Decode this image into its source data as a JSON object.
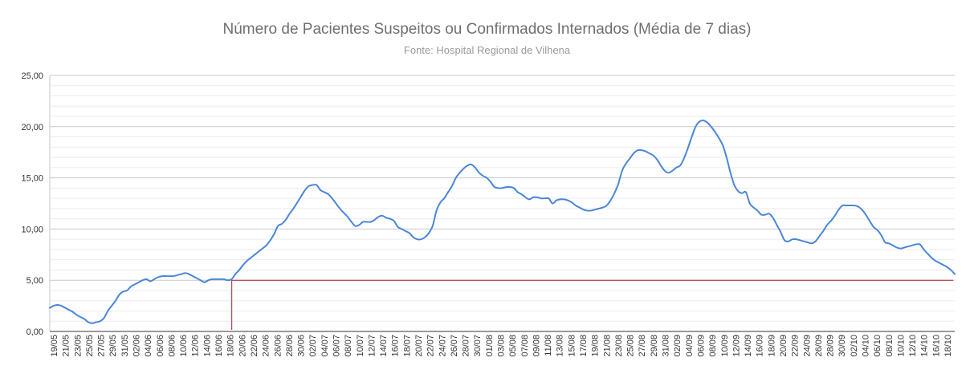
{
  "chart_data": {
    "type": "line",
    "title": "Número de Pacientes Suspeitos ou Confirmados Internados (Média de 7 dias)",
    "subtitle": "Fonte: Hospital Regional de Vilhena",
    "xlabel": "",
    "ylabel": "",
    "ylim": [
      0,
      25
    ],
    "grid": true,
    "legend": "none",
    "y_ticks": [
      "0,00",
      "5,00",
      "10,00",
      "15,00",
      "20,00",
      "25,00"
    ],
    "x_ticks": [
      "19/05",
      "21/05",
      "23/05",
      "25/05",
      "27/05",
      "29/05",
      "31/05",
      "02/06",
      "04/06",
      "06/06",
      "08/06",
      "10/06",
      "12/06",
      "14/06",
      "16/06",
      "18/06",
      "20/06",
      "22/06",
      "24/06",
      "26/06",
      "28/06",
      "30/06",
      "02/07",
      "04/07",
      "06/07",
      "08/07",
      "10/07",
      "12/07",
      "14/07",
      "16/07",
      "18/07",
      "20/07",
      "22/07",
      "24/07",
      "26/07",
      "28/07",
      "30/07",
      "01/08",
      "03/08",
      "05/08",
      "07/08",
      "09/08",
      "11/08",
      "13/08",
      "15/08",
      "17/08",
      "19/08",
      "21/08",
      "23/08",
      "25/08",
      "27/08",
      "29/08",
      "31/08",
      "02/09",
      "04/09",
      "06/09",
      "08/09",
      "10/09",
      "12/09",
      "14/09",
      "16/09",
      "18/09",
      "20/09",
      "22/09",
      "24/09",
      "26/09",
      "28/09",
      "30/09",
      "02/10",
      "04/10",
      "06/10",
      "08/10",
      "10/10",
      "12/10",
      "14/10",
      "16/10",
      "18/10"
    ],
    "series": [
      {
        "name": "",
        "color": "#4a86d8",
        "values": [
          2.3,
          2.5,
          2.6,
          2.5,
          2.3,
          2.1,
          1.9,
          1.6,
          1.4,
          1.2,
          0.9,
          0.8,
          0.9,
          1.0,
          1.3,
          2.0,
          2.5,
          3.0,
          3.6,
          3.9,
          4.0,
          4.4,
          4.6,
          4.8,
          5.0,
          5.1,
          4.9,
          5.1,
          5.3,
          5.4,
          5.4,
          5.4,
          5.4,
          5.5,
          5.6,
          5.7,
          5.6,
          5.4,
          5.2,
          5.0,
          4.8,
          5.0,
          5.1,
          5.1,
          5.1,
          5.1,
          5.0,
          5.1,
          5.6,
          6.0,
          6.5,
          6.9,
          7.2,
          7.5,
          7.8,
          8.1,
          8.4,
          8.9,
          9.5,
          10.3,
          10.5,
          10.9,
          11.5,
          12.0,
          12.6,
          13.2,
          13.8,
          14.2,
          14.3,
          14.3,
          13.8,
          13.6,
          13.4,
          13.0,
          12.5,
          12.0,
          11.6,
          11.2,
          10.7,
          10.3,
          10.4,
          10.7,
          10.7,
          10.7,
          10.9,
          11.2,
          11.3,
          11.1,
          11.0,
          10.8,
          10.2,
          10.0,
          9.8,
          9.6,
          9.2,
          9.0,
          9.0,
          9.2,
          9.6,
          10.3,
          11.8,
          12.6,
          13.0,
          13.6,
          14.2,
          15.0,
          15.5,
          15.9,
          16.2,
          16.3,
          16.0,
          15.5,
          15.2,
          15.0,
          14.6,
          14.1,
          14.0,
          14.0,
          14.1,
          14.1,
          14.0,
          13.6,
          13.4,
          13.1,
          12.9,
          13.1,
          13.1,
          13.0,
          13.0,
          13.0,
          12.5,
          12.8,
          12.9,
          12.9,
          12.8,
          12.6,
          12.3,
          12.1,
          11.9,
          11.8,
          11.8,
          11.9,
          12.0,
          12.1,
          12.3,
          12.8,
          13.5,
          14.4,
          15.7,
          16.4,
          16.9,
          17.4,
          17.7,
          17.7,
          17.6,
          17.4,
          17.2,
          16.8,
          16.2,
          15.7,
          15.5,
          15.7,
          16.0,
          16.2,
          16.9,
          17.9,
          19.0,
          20.0,
          20.5,
          20.6,
          20.4,
          20.0,
          19.5,
          18.9,
          18.2,
          17.0,
          15.5,
          14.3,
          13.7,
          13.5,
          13.6,
          12.5,
          12.1,
          11.8,
          11.4,
          11.4,
          11.5,
          11.1,
          10.4,
          9.7,
          8.9,
          8.8,
          9.0,
          9.0,
          8.9,
          8.8,
          8.7,
          8.6,
          8.8,
          9.3,
          9.8,
          10.4,
          10.8,
          11.3,
          11.9,
          12.3,
          12.3,
          12.3,
          12.3,
          12.2,
          11.9,
          11.4,
          10.8,
          10.2,
          9.9,
          9.4,
          8.7,
          8.6,
          8.4,
          8.2,
          8.1,
          8.2,
          8.3,
          8.4,
          8.5,
          8.5,
          8.0,
          7.6,
          7.2,
          6.9,
          6.7,
          6.5,
          6.3,
          6.0,
          5.6
        ]
      }
    ],
    "reference_line": {
      "y": 5,
      "start": "18/06",
      "color": "#b01e24"
    }
  }
}
